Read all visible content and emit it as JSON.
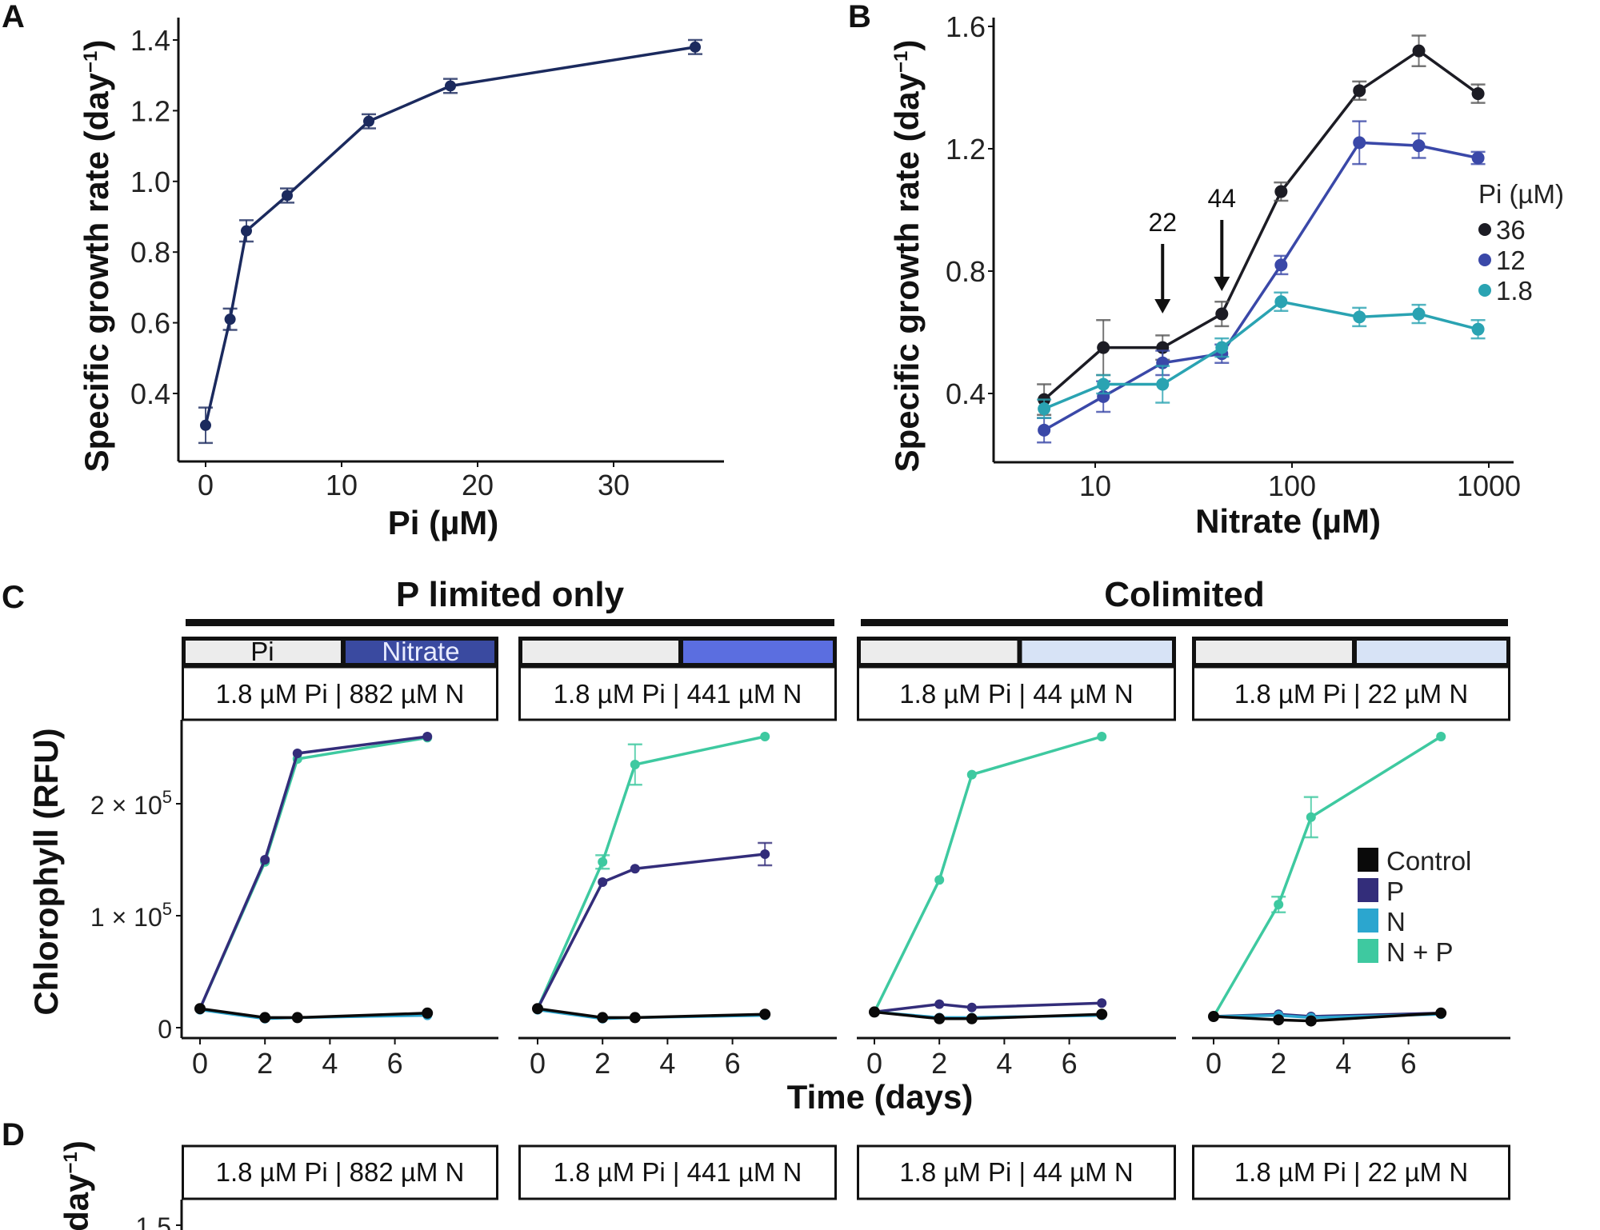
{
  "panels": {
    "A": {
      "letter": "A"
    },
    "B": {
      "letter": "B"
    },
    "C": {
      "letter": "C"
    },
    "D": {
      "letter": "D"
    }
  },
  "chart_data": [
    {
      "id": "A",
      "type": "line",
      "title": "",
      "xlabel": "Pi (µM)",
      "ylabel": "Specific growth rate (day⁻¹)",
      "xlim": [
        -2,
        38
      ],
      "ylim": [
        0.2,
        1.45
      ],
      "xticks": [
        0,
        10,
        20,
        30
      ],
      "xtick_labels": [
        "0",
        "10",
        "20",
        "30"
      ],
      "yticks": [
        0.4,
        0.6,
        0.8,
        1.0,
        1.2,
        1.4
      ],
      "ytick_labels": [
        "0.4",
        "0.6",
        "0.8",
        "1.0",
        "1.2",
        "1.4"
      ],
      "series": [
        {
          "name": "growth",
          "color": "#1b2a5e",
          "x": [
            0,
            1.8,
            3,
            6,
            12,
            18,
            36
          ],
          "y": [
            0.31,
            0.61,
            0.86,
            0.96,
            1.17,
            1.27,
            1.38
          ],
          "err": [
            0.05,
            0.03,
            0.03,
            0.02,
            0.02,
            0.02,
            0.02
          ]
        }
      ]
    },
    {
      "id": "B",
      "type": "line",
      "xscale": "log",
      "xlabel": "Nitrate (µM)",
      "ylabel": "Specific growth rate (day⁻¹)",
      "xlim": [
        3.5,
        1300
      ],
      "ylim": [
        0.2,
        1.65
      ],
      "xticks": [
        10,
        100,
        1000
      ],
      "xtick_labels": [
        "10",
        "100",
        "1000"
      ],
      "yticks": [
        0.4,
        0.8,
        1.2,
        1.6
      ],
      "ytick_labels": [
        "0.4",
        "0.8",
        "1.2",
        "1.6"
      ],
      "x": [
        5.5,
        11,
        22,
        44,
        88,
        220,
        441,
        882
      ],
      "legend": {
        "title": "Pi (µM)",
        "position": "right"
      },
      "annotations": [
        {
          "label": "22",
          "x": 22,
          "type": "down-arrow"
        },
        {
          "label": "44",
          "x": 44,
          "type": "down-arrow"
        }
      ],
      "series": [
        {
          "name": "36",
          "color": "#1c1c24",
          "y": [
            0.38,
            0.55,
            0.55,
            0.66,
            1.06,
            1.39,
            1.52,
            1.38
          ],
          "err": [
            0.05,
            0.09,
            0.04,
            0.04,
            0.03,
            0.03,
            0.05,
            0.03
          ]
        },
        {
          "name": "12",
          "color": "#3a48a8",
          "y": [
            0.28,
            0.39,
            0.5,
            0.53,
            0.82,
            1.22,
            1.21,
            1.17
          ],
          "err": [
            0.04,
            0.05,
            0.04,
            0.03,
            0.03,
            0.07,
            0.04,
            0.02
          ]
        },
        {
          "name": "1.8",
          "color": "#2aa3b2",
          "y": [
            0.35,
            0.43,
            0.43,
            0.55,
            0.7,
            0.65,
            0.66,
            0.61
          ],
          "err": [
            0.03,
            0.03,
            0.06,
            0.03,
            0.03,
            0.03,
            0.03,
            0.03
          ]
        }
      ]
    },
    {
      "id": "C",
      "type": "line",
      "xlabel": "Time (days)",
      "ylabel": "Chlorophyll (RFU)",
      "xlim": [
        -0.5,
        7.5
      ],
      "ylim": [
        -8000,
        280000
      ],
      "xticks": [
        0,
        2,
        4,
        6
      ],
      "xtick_labels": [
        "0",
        "2",
        "4",
        "6"
      ],
      "yticks": [
        0,
        100000,
        200000
      ],
      "ytick_labels": [
        {
          "base": "0",
          "exp": ""
        },
        {
          "base": "1 × 10",
          "exp": "5"
        },
        {
          "base": "2 × 10",
          "exp": "5"
        }
      ],
      "x": [
        0,
        2,
        3,
        7
      ],
      "groups": [
        {
          "title": "P limited only",
          "facets": [
            0,
            1
          ]
        },
        {
          "title": "Colimited",
          "facets": [
            2,
            3
          ]
        }
      ],
      "nutrient_bar_labels": {
        "pi": "Pi",
        "nitrate": "Nitrate"
      },
      "legend": {
        "position": "inside-right",
        "entries": [
          {
            "name": "Control",
            "color": "#0a0a0a"
          },
          {
            "name": "P",
            "color": "#332d7a"
          },
          {
            "name": "N",
            "color": "#2ba6cf"
          },
          {
            "name": "N + P",
            "color": "#3ec9a0"
          }
        ]
      },
      "facets": [
        {
          "label": "1.8 µM Pi | 882 µM N",
          "nitrate_color": "#3a4aa0",
          "show_bar_text": true,
          "series": {
            "Control": [
              17000,
              9000,
              9000,
              13000
            ],
            "P": [
              17000,
              150000,
              245000,
              260000
            ],
            "N": [
              16000,
              8000,
              9000,
              11000
            ],
            "N + P": [
              17000,
              148000,
              240000,
              259000
            ]
          },
          "err": {
            "N + P": [
              0,
              0,
              0,
              0
            ],
            "P": [
              0,
              0,
              0,
              0
            ]
          }
        },
        {
          "label": "1.8 µM Pi | 441 µM N",
          "nitrate_color": "#5b6ee0",
          "show_bar_text": false,
          "series": {
            "Control": [
              17000,
              9000,
              9000,
              12000
            ],
            "P": [
              17000,
              130000,
              142000,
              155000
            ],
            "N": [
              16000,
              8000,
              9000,
              11000
            ],
            "N + P": [
              17000,
              148000,
              235000,
              260000
            ]
          },
          "err": {
            "N + P": [
              0,
              6000,
              18000,
              0
            ],
            "P": [
              0,
              0,
              0,
              10000
            ]
          }
        },
        {
          "label": "1.8 µM Pi | 44 µM N",
          "nitrate_color": "#d7e3f6",
          "show_bar_text": false,
          "series": {
            "Control": [
              14000,
              8000,
              8000,
              12000
            ],
            "P": [
              14000,
              21000,
              18000,
              22000
            ],
            "N": [
              14000,
              9000,
              9000,
              11000
            ],
            "N + P": [
              14000,
              132000,
              226000,
              260000
            ]
          },
          "err": {
            "N + P": [
              0,
              0,
              0,
              0
            ],
            "P": [
              0,
              0,
              0,
              0
            ]
          }
        },
        {
          "label": "1.8 µM Pi | 22 µM N",
          "nitrate_color": "#d7e3f6",
          "show_bar_text": false,
          "series": {
            "Control": [
              10000,
              7000,
              6000,
              13000
            ],
            "P": [
              10000,
              12000,
              10000,
              13000
            ],
            "N": [
              10000,
              11000,
              9000,
              12000
            ],
            "N + P": [
              10000,
              110000,
              188000,
              260000
            ]
          },
          "err": {
            "N + P": [
              0,
              7000,
              18000,
              0
            ],
            "P": [
              0,
              0,
              0,
              0
            ]
          }
        }
      ]
    },
    {
      "id": "D",
      "type": "line",
      "ylabel": "(day⁻¹)",
      "ytick_labels": [
        "1.5"
      ],
      "facets": [
        {
          "label": "1.8 µM Pi | 882 µM N"
        },
        {
          "label": "1.8 µM Pi | 441 µM N"
        },
        {
          "label": "1.8 µM Pi | 44 µM N"
        },
        {
          "label": "1.8 µM Pi | 22 µM N"
        }
      ]
    }
  ]
}
